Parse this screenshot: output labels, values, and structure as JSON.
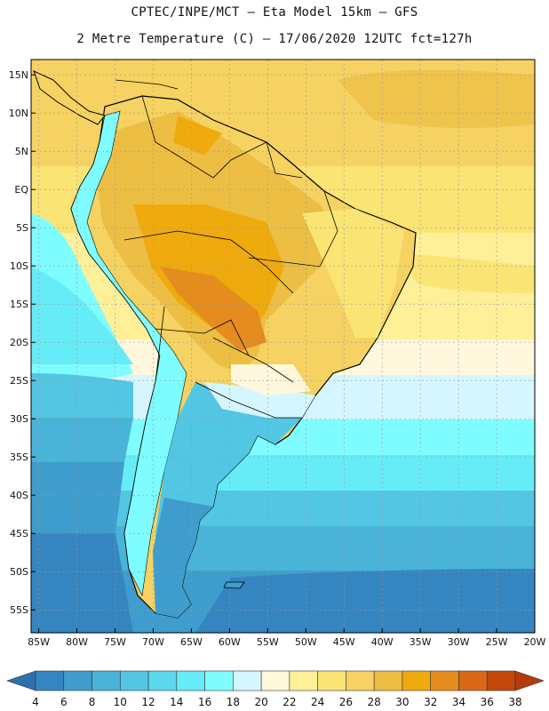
{
  "header": {
    "line1": "CPTEC/INPE/MCT –  Eta Model 15km – GFS",
    "line2": "2 Metre Temperature (C) – 17/06/2020 12UTC fct=127h"
  },
  "axes": {
    "lat_labels": [
      "15N",
      "10N",
      "5N",
      "EQ",
      "5S",
      "10S",
      "15S",
      "20S",
      "25S",
      "30S",
      "35S",
      "40S",
      "45S",
      "50S",
      "55S"
    ],
    "lat_values": [
      15,
      10,
      5,
      0,
      -5,
      -10,
      -15,
      -20,
      -25,
      -30,
      -35,
      -40,
      -45,
      -50,
      -55
    ],
    "lon_labels": [
      "85W",
      "80W",
      "75W",
      "70W",
      "65W",
      "60W",
      "55W",
      "50W",
      "45W",
      "40W",
      "35W",
      "30W",
      "25W",
      "20W"
    ],
    "lon_values": [
      -85,
      -80,
      -75,
      -70,
      -65,
      -60,
      -55,
      -50,
      -45,
      -40,
      -35,
      -30,
      -25,
      -20
    ],
    "lat_range": [
      -58,
      17
    ],
    "lon_range": [
      -86,
      -20
    ]
  },
  "colorbar": {
    "unit": "C",
    "labels": [
      "4",
      "6",
      "8",
      "10",
      "12",
      "14",
      "16",
      "18",
      "20",
      "22",
      "24",
      "26",
      "28",
      "30",
      "32",
      "34",
      "36",
      "38"
    ],
    "colors": [
      "#2e6fb0",
      "#3585c0",
      "#3e9dcc",
      "#49b3d8",
      "#52c6e2",
      "#5bd8ec",
      "#66ecf7",
      "#7ffcff",
      "#d6f6ff",
      "#fff8dc",
      "#fdf099",
      "#fae474",
      "#f5d261",
      "#ecbe44",
      "#efaa0e",
      "#e48c1e",
      "#d86818",
      "#c4460b",
      "#b43c08"
    ]
  }
}
